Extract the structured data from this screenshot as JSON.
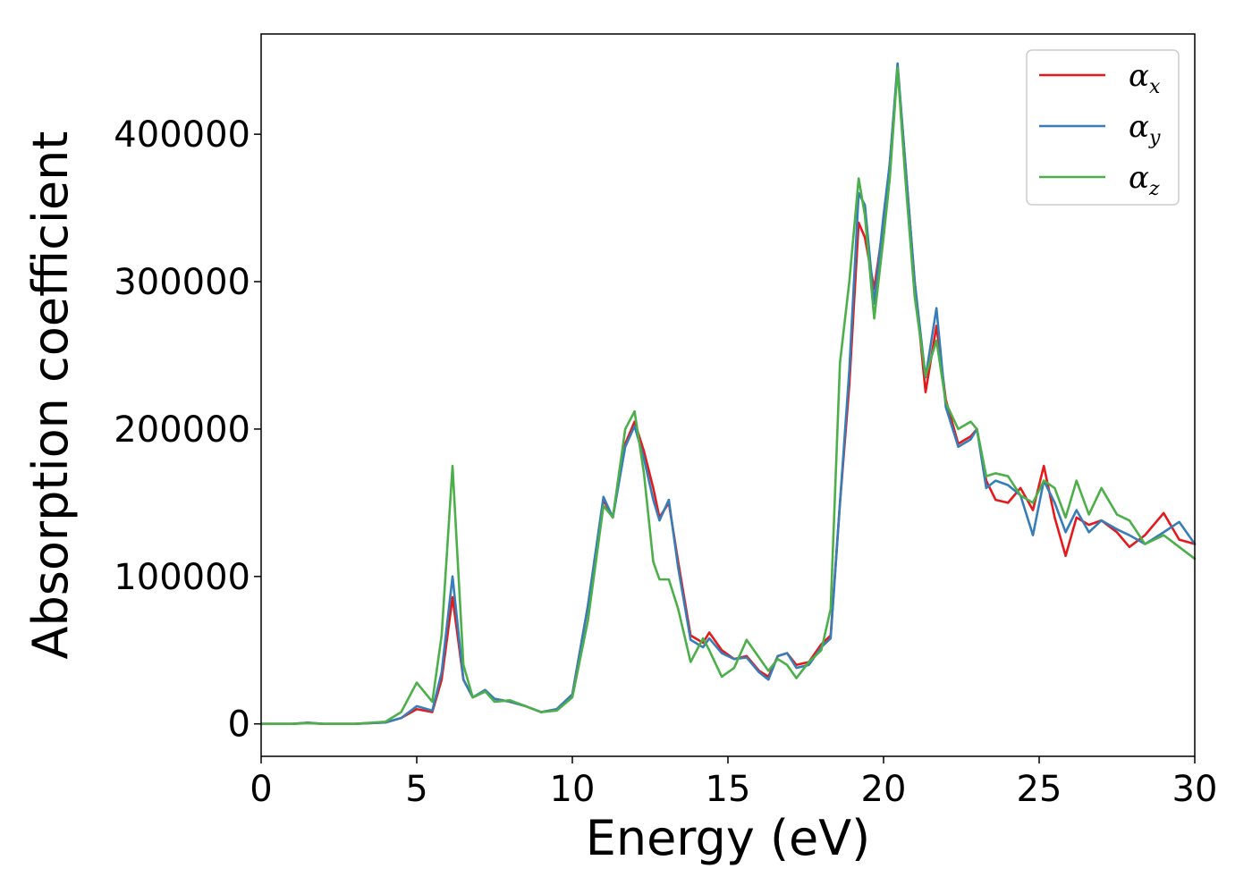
{
  "chart_data": {
    "type": "line",
    "xlabel": "Energy (eV)",
    "ylabel": "Absorption coefficient",
    "xlim": [
      0,
      30
    ],
    "ylim": [
      -22000,
      468000
    ],
    "xticks": [
      "0",
      "5",
      "10",
      "15",
      "20",
      "25",
      "30"
    ],
    "yticks": [
      "0",
      "100000",
      "200000",
      "300000",
      "400000"
    ],
    "grid": false,
    "legend_position": "top-right",
    "series": [
      {
        "name": "α",
        "subscript": "x",
        "color": "#e41a1c",
        "points": [
          [
            0,
            0
          ],
          [
            1,
            0
          ],
          [
            1.5,
            800
          ],
          [
            2,
            0
          ],
          [
            3,
            0
          ],
          [
            4,
            1000
          ],
          [
            4.5,
            4000
          ],
          [
            5,
            10000
          ],
          [
            5.5,
            8000
          ],
          [
            5.8,
            30000
          ],
          [
            6.15,
            86000
          ],
          [
            6.5,
            30000
          ],
          [
            6.8,
            18000
          ],
          [
            7.2,
            22000
          ],
          [
            7.5,
            17000
          ],
          [
            8,
            15000
          ],
          [
            8.5,
            12000
          ],
          [
            9,
            8000
          ],
          [
            9.5,
            10000
          ],
          [
            10,
            20000
          ],
          [
            10.5,
            80000
          ],
          [
            11,
            152000
          ],
          [
            11.3,
            140000
          ],
          [
            11.7,
            190000
          ],
          [
            12,
            205000
          ],
          [
            12.3,
            185000
          ],
          [
            12.6,
            160000
          ],
          [
            12.8,
            140000
          ],
          [
            13.1,
            150000
          ],
          [
            13.4,
            110000
          ],
          [
            13.8,
            60000
          ],
          [
            14.2,
            55000
          ],
          [
            14.4,
            62000
          ],
          [
            14.8,
            50000
          ],
          [
            15.2,
            44000
          ],
          [
            15.6,
            46000
          ],
          [
            16,
            36000
          ],
          [
            16.3,
            32000
          ],
          [
            16.6,
            46000
          ],
          [
            16.9,
            48000
          ],
          [
            17.2,
            40000
          ],
          [
            17.6,
            42000
          ],
          [
            18,
            54000
          ],
          [
            18.3,
            60000
          ],
          [
            18.6,
            150000
          ],
          [
            18.9,
            230000
          ],
          [
            19.2,
            340000
          ],
          [
            19.4,
            330000
          ],
          [
            19.7,
            295000
          ],
          [
            20,
            340000
          ],
          [
            20.2,
            380000
          ],
          [
            20.45,
            445000
          ],
          [
            20.7,
            380000
          ],
          [
            21,
            300000
          ],
          [
            21.35,
            225000
          ],
          [
            21.7,
            270000
          ],
          [
            22,
            220000
          ],
          [
            22.4,
            190000
          ],
          [
            22.8,
            195000
          ],
          [
            23,
            200000
          ],
          [
            23.3,
            165000
          ],
          [
            23.6,
            152000
          ],
          [
            24,
            150000
          ],
          [
            24.4,
            160000
          ],
          [
            24.8,
            145000
          ],
          [
            25.15,
            175000
          ],
          [
            25.5,
            140000
          ],
          [
            25.85,
            114000
          ],
          [
            26.2,
            140000
          ],
          [
            26.6,
            135000
          ],
          [
            27,
            138000
          ],
          [
            27.5,
            130000
          ],
          [
            27.9,
            120000
          ],
          [
            28.4,
            128000
          ],
          [
            29,
            143000
          ],
          [
            29.5,
            125000
          ],
          [
            30,
            122000
          ]
        ]
      },
      {
        "name": "α",
        "subscript": "y",
        "color": "#377eb8",
        "points": [
          [
            0,
            0
          ],
          [
            1,
            0
          ],
          [
            1.5,
            800
          ],
          [
            2,
            0
          ],
          [
            3,
            0
          ],
          [
            4,
            1000
          ],
          [
            4.5,
            4000
          ],
          [
            5,
            12000
          ],
          [
            5.5,
            9000
          ],
          [
            5.8,
            35000
          ],
          [
            6.15,
            100000
          ],
          [
            6.5,
            30000
          ],
          [
            6.8,
            18000
          ],
          [
            7.2,
            23000
          ],
          [
            7.5,
            17000
          ],
          [
            8,
            15000
          ],
          [
            8.5,
            12000
          ],
          [
            9,
            8000
          ],
          [
            9.5,
            10000
          ],
          [
            10,
            20000
          ],
          [
            10.5,
            80000
          ],
          [
            11,
            154000
          ],
          [
            11.3,
            140000
          ],
          [
            11.7,
            188000
          ],
          [
            12,
            202000
          ],
          [
            12.3,
            180000
          ],
          [
            12.6,
            152000
          ],
          [
            12.8,
            138000
          ],
          [
            13.1,
            152000
          ],
          [
            13.4,
            106000
          ],
          [
            13.8,
            57000
          ],
          [
            14.2,
            52000
          ],
          [
            14.4,
            58000
          ],
          [
            14.8,
            48000
          ],
          [
            15.2,
            44000
          ],
          [
            15.6,
            45000
          ],
          [
            16,
            35000
          ],
          [
            16.3,
            30000
          ],
          [
            16.6,
            46000
          ],
          [
            16.9,
            48000
          ],
          [
            17.2,
            38000
          ],
          [
            17.6,
            40000
          ],
          [
            18,
            52000
          ],
          [
            18.3,
            58000
          ],
          [
            18.6,
            150000
          ],
          [
            18.9,
            240000
          ],
          [
            19.2,
            360000
          ],
          [
            19.4,
            352000
          ],
          [
            19.7,
            285000
          ],
          [
            20,
            345000
          ],
          [
            20.2,
            380000
          ],
          [
            20.45,
            448000
          ],
          [
            20.7,
            380000
          ],
          [
            21,
            300000
          ],
          [
            21.35,
            235000
          ],
          [
            21.7,
            282000
          ],
          [
            22,
            215000
          ],
          [
            22.4,
            188000
          ],
          [
            22.8,
            193000
          ],
          [
            23,
            200000
          ],
          [
            23.3,
            160000
          ],
          [
            23.6,
            165000
          ],
          [
            24,
            162000
          ],
          [
            24.4,
            155000
          ],
          [
            24.8,
            128000
          ],
          [
            25.15,
            165000
          ],
          [
            25.5,
            150000
          ],
          [
            25.85,
            130000
          ],
          [
            26.2,
            145000
          ],
          [
            26.6,
            130000
          ],
          [
            27,
            138000
          ],
          [
            27.5,
            132000
          ],
          [
            27.9,
            128000
          ],
          [
            28.4,
            122000
          ],
          [
            29,
            130000
          ],
          [
            29.5,
            137000
          ],
          [
            30,
            122000
          ]
        ]
      },
      {
        "name": "α",
        "subscript": "z",
        "color": "#4daf4a",
        "points": [
          [
            0,
            0
          ],
          [
            1,
            0
          ],
          [
            1.5,
            500
          ],
          [
            2,
            0
          ],
          [
            3,
            0
          ],
          [
            4,
            1500
          ],
          [
            4.5,
            8000
          ],
          [
            5,
            28000
          ],
          [
            5.5,
            15000
          ],
          [
            5.8,
            60000
          ],
          [
            6.15,
            175000
          ],
          [
            6.5,
            40000
          ],
          [
            6.8,
            18000
          ],
          [
            7.2,
            22000
          ],
          [
            7.5,
            15000
          ],
          [
            8,
            16000
          ],
          [
            8.5,
            12000
          ],
          [
            9,
            8000
          ],
          [
            9.5,
            9000
          ],
          [
            10,
            18000
          ],
          [
            10.5,
            70000
          ],
          [
            11,
            148000
          ],
          [
            11.3,
            140000
          ],
          [
            11.7,
            200000
          ],
          [
            12,
            212000
          ],
          [
            12.3,
            170000
          ],
          [
            12.6,
            110000
          ],
          [
            12.8,
            98000
          ],
          [
            13.1,
            98000
          ],
          [
            13.4,
            78000
          ],
          [
            13.8,
            42000
          ],
          [
            14.2,
            58000
          ],
          [
            14.4,
            50000
          ],
          [
            14.8,
            32000
          ],
          [
            15.2,
            38000
          ],
          [
            15.6,
            57000
          ],
          [
            16,
            45000
          ],
          [
            16.3,
            36000
          ],
          [
            16.6,
            44000
          ],
          [
            16.9,
            40000
          ],
          [
            17.2,
            31000
          ],
          [
            17.6,
            42000
          ],
          [
            18,
            50000
          ],
          [
            18.3,
            78000
          ],
          [
            18.6,
            245000
          ],
          [
            18.9,
            300000
          ],
          [
            19.2,
            370000
          ],
          [
            19.4,
            345000
          ],
          [
            19.7,
            275000
          ],
          [
            20,
            330000
          ],
          [
            20.2,
            370000
          ],
          [
            20.45,
            445000
          ],
          [
            20.7,
            370000
          ],
          [
            21,
            290000
          ],
          [
            21.35,
            236000
          ],
          [
            21.7,
            260000
          ],
          [
            22,
            218000
          ],
          [
            22.4,
            200000
          ],
          [
            22.8,
            205000
          ],
          [
            23,
            200000
          ],
          [
            23.3,
            168000
          ],
          [
            23.6,
            170000
          ],
          [
            24,
            168000
          ],
          [
            24.4,
            155000
          ],
          [
            24.8,
            150000
          ],
          [
            25.15,
            165000
          ],
          [
            25.5,
            160000
          ],
          [
            25.85,
            140000
          ],
          [
            26.2,
            165000
          ],
          [
            26.6,
            142000
          ],
          [
            27,
            160000
          ],
          [
            27.5,
            142000
          ],
          [
            27.9,
            138000
          ],
          [
            28.4,
            122000
          ],
          [
            29,
            128000
          ],
          [
            29.5,
            120000
          ],
          [
            30,
            112000
          ]
        ]
      }
    ]
  }
}
